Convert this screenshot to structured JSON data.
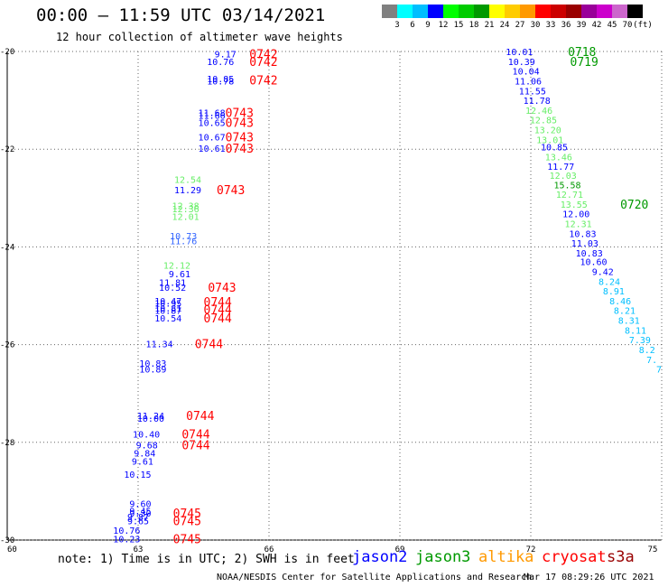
{
  "header": {
    "title": "00:00 — 11:59 UTC 03/14/2021",
    "subtitle": "12 hour collection of altimeter wave heights"
  },
  "legend": {
    "colors": [
      "#808080",
      "#00ffff",
      "#00bfff",
      "#0000ff",
      "#00ff00",
      "#00cc00",
      "#009900",
      "#ffff00",
      "#ffcc00",
      "#ff9900",
      "#ff0000",
      "#cc0000",
      "#990000",
      "#990099",
      "#cc00cc",
      "#cc66cc",
      "#000000"
    ],
    "labels": [
      "3",
      "6",
      "9",
      "12",
      "15",
      "18",
      "21",
      "24",
      "27",
      "30",
      "33",
      "36",
      "39",
      "42",
      "45",
      "70",
      "(ft)"
    ]
  },
  "axes": {
    "lat_labels": [
      "-20",
      "-22",
      "-24",
      "-26",
      "-28",
      "-30"
    ],
    "lon_labels": [
      "60",
      "63",
      "66",
      "69",
      "72",
      "75"
    ]
  },
  "map": {
    "swh_points": [
      {
        "text": "9.17",
        "lon": 65.25,
        "lat": -20.05,
        "color": "#0000ff"
      },
      {
        "text": "10.76",
        "lon": 65.2,
        "lat": -20.2,
        "color": "#0000ff"
      },
      {
        "text": "10.85",
        "lon": 65.2,
        "lat": -20.55,
        "color": "#0000ff"
      },
      {
        "text": "10.78",
        "lon": 65.2,
        "lat": -20.6,
        "color": "#0000ff"
      },
      {
        "text": "11.68",
        "lon": 65.0,
        "lat": -21.25,
        "color": "#0000ff"
      },
      {
        "text": "11.66",
        "lon": 65.0,
        "lat": -21.3,
        "color": "#0000ff"
      },
      {
        "text": "10.65",
        "lon": 65.0,
        "lat": -21.45,
        "color": "#0000ff"
      },
      {
        "text": "10.67",
        "lon": 65.0,
        "lat": -21.75,
        "color": "#0000ff"
      },
      {
        "text": "10.61",
        "lon": 65.0,
        "lat": -21.98,
        "color": "#0000ff"
      },
      {
        "text": "12.54",
        "lon": 64.45,
        "lat": -22.62,
        "color": "#66ee66"
      },
      {
        "text": "11.29",
        "lon": 64.45,
        "lat": -22.83,
        "color": "#0000ff"
      },
      {
        "text": "12.38",
        "lon": 64.4,
        "lat": -23.15,
        "color": "#66ee66"
      },
      {
        "text": "12.36",
        "lon": 64.4,
        "lat": -23.22,
        "color": "#66ee66"
      },
      {
        "text": "12.01",
        "lon": 64.4,
        "lat": -23.37,
        "color": "#66ee66"
      },
      {
        "text": "10.73",
        "lon": 64.35,
        "lat": -23.77,
        "color": "#3366ff"
      },
      {
        "text": "11.76",
        "lon": 64.35,
        "lat": -23.87,
        "color": "#3366ff"
      },
      {
        "text": "12.12",
        "lon": 64.2,
        "lat": -24.37,
        "color": "#66ee66"
      },
      {
        "text": "9.61",
        "lon": 64.2,
        "lat": -24.55,
        "color": "#0000ff"
      },
      {
        "text": "11.81",
        "lon": 64.1,
        "lat": -24.72,
        "color": "#0000ff"
      },
      {
        "text": "10.52",
        "lon": 64.1,
        "lat": -24.82,
        "color": "#0000ff"
      },
      {
        "text": "10.47",
        "lon": 64.0,
        "lat": -25.1,
        "color": "#0000ff"
      },
      {
        "text": "10.95",
        "lon": 64.0,
        "lat": -25.15,
        "color": "#0000ff"
      },
      {
        "text": "10.81",
        "lon": 64.0,
        "lat": -25.25,
        "color": "#0000ff"
      },
      {
        "text": "10.87",
        "lon": 64.0,
        "lat": -25.3,
        "color": "#0000ff"
      },
      {
        "text": "10.54",
        "lon": 64.0,
        "lat": -25.45,
        "color": "#0000ff"
      },
      {
        "text": "11.34",
        "lon": 63.8,
        "lat": -25.98,
        "color": "#0000ff"
      },
      {
        "text": "10.83",
        "lon": 63.65,
        "lat": -26.38,
        "color": "#0000ff"
      },
      {
        "text": "10.89",
        "lon": 63.65,
        "lat": -26.5,
        "color": "#0000ff"
      },
      {
        "text": "11.24",
        "lon": 63.6,
        "lat": -27.45,
        "color": "#0000ff"
      },
      {
        "text": "10.00",
        "lon": 63.6,
        "lat": -27.5,
        "color": "#0000ff"
      },
      {
        "text": "10.40",
        "lon": 63.5,
        "lat": -27.83,
        "color": "#0000ff"
      },
      {
        "text": "9.68",
        "lon": 63.45,
        "lat": -28.05,
        "color": "#0000ff"
      },
      {
        "text": "9.84",
        "lon": 63.4,
        "lat": -28.22,
        "color": "#0000ff"
      },
      {
        "text": "9.61",
        "lon": 63.35,
        "lat": -28.38,
        "color": "#0000ff"
      },
      {
        "text": "10.15",
        "lon": 63.3,
        "lat": -28.65,
        "color": "#0000ff"
      },
      {
        "text": "9.60",
        "lon": 63.3,
        "lat": -29.25,
        "color": "#0000ff"
      },
      {
        "text": "9.45",
        "lon": 63.3,
        "lat": -29.4,
        "color": "#0000ff"
      },
      {
        "text": "9.30",
        "lon": 63.3,
        "lat": -29.45,
        "color": "#0000ff"
      },
      {
        "text": "9.87",
        "lon": 63.25,
        "lat": -29.52,
        "color": "#0000ff"
      },
      {
        "text": "9.65",
        "lon": 63.25,
        "lat": -29.6,
        "color": "#0000ff"
      },
      {
        "text": "10.76",
        "lon": 63.05,
        "lat": -29.8,
        "color": "#0000ff"
      },
      {
        "text": "10.23",
        "lon": 63.05,
        "lat": -29.97,
        "color": "#0000ff"
      },
      {
        "text": "10.01",
        "lon": 72.05,
        "lat": -20.0,
        "color": "#0000ff"
      },
      {
        "text": "10.39",
        "lon": 72.1,
        "lat": -20.2,
        "color": "#0000ff"
      },
      {
        "text": "10.04",
        "lon": 72.2,
        "lat": -20.4,
        "color": "#0000ff"
      },
      {
        "text": "11.06",
        "lon": 72.25,
        "lat": -20.6,
        "color": "#0000ff"
      },
      {
        "text": "11.55",
        "lon": 72.35,
        "lat": -20.8,
        "color": "#0000ff"
      },
      {
        "text": "11.78",
        "lon": 72.45,
        "lat": -21.0,
        "color": "#0000ff"
      },
      {
        "text": "12.46",
        "lon": 72.5,
        "lat": -21.2,
        "color": "#66ee66"
      },
      {
        "text": "12.85",
        "lon": 72.6,
        "lat": -21.4,
        "color": "#66ee66"
      },
      {
        "text": "13.20",
        "lon": 72.7,
        "lat": -21.6,
        "color": "#66ee66"
      },
      {
        "text": "13.01",
        "lon": 72.75,
        "lat": -21.8,
        "color": "#66ee66"
      },
      {
        "text": "10.85",
        "lon": 72.85,
        "lat": -21.95,
        "color": "#0000ff"
      },
      {
        "text": "13.46",
        "lon": 72.95,
        "lat": -22.15,
        "color": "#66ee66"
      },
      {
        "text": "11.77",
        "lon": 73.0,
        "lat": -22.35,
        "color": "#0000ff"
      },
      {
        "text": "12.03",
        "lon": 73.05,
        "lat": -22.53,
        "color": "#66ee66"
      },
      {
        "text": "15.58",
        "lon": 73.15,
        "lat": -22.73,
        "color": "#009900"
      },
      {
        "text": "12.71",
        "lon": 73.2,
        "lat": -22.92,
        "color": "#66ee66"
      },
      {
        "text": "13.55",
        "lon": 73.3,
        "lat": -23.12,
        "color": "#66ee66"
      },
      {
        "text": "12.00",
        "lon": 73.35,
        "lat": -23.32,
        "color": "#0000ff"
      },
      {
        "text": "12.31",
        "lon": 73.4,
        "lat": -23.52,
        "color": "#66ee66"
      },
      {
        "text": "10.83",
        "lon": 73.5,
        "lat": -23.72,
        "color": "#0000ff"
      },
      {
        "text": "11.03",
        "lon": 73.55,
        "lat": -23.92,
        "color": "#0000ff"
      },
      {
        "text": "10.83",
        "lon": 73.65,
        "lat": -24.12,
        "color": "#0000ff"
      },
      {
        "text": "10.60",
        "lon": 73.75,
        "lat": -24.3,
        "color": "#0000ff"
      },
      {
        "text": "9.42",
        "lon": 73.9,
        "lat": -24.5,
        "color": "#0000ff"
      },
      {
        "text": "8.24",
        "lon": 74.05,
        "lat": -24.7,
        "color": "#00bfff"
      },
      {
        "text": "8.91",
        "lon": 74.15,
        "lat": -24.9,
        "color": "#00bfff"
      },
      {
        "text": "8.46",
        "lon": 74.3,
        "lat": -25.1,
        "color": "#00bfff"
      },
      {
        "text": "8.21",
        "lon": 74.4,
        "lat": -25.3,
        "color": "#00bfff"
      },
      {
        "text": "8.31",
        "lon": 74.5,
        "lat": -25.5,
        "color": "#00bfff"
      },
      {
        "text": "8.11",
        "lon": 74.65,
        "lat": -25.7,
        "color": "#00bfff"
      },
      {
        "text": "7.39",
        "lon": 74.75,
        "lat": -25.9,
        "color": "#00bfff"
      },
      {
        "text": "8.2",
        "lon": 74.85,
        "lat": -26.1,
        "color": "#00bfff"
      },
      {
        "text": "7.",
        "lon": 74.9,
        "lat": -26.3,
        "color": "#00bfff"
      },
      {
        "text": "7",
        "lon": 75.0,
        "lat": -26.5,
        "color": "#00bfff"
      }
    ],
    "time_labels": [
      {
        "text": "0742",
        "lon": 65.55,
        "lat": -20.05,
        "color": "#ff0000"
      },
      {
        "text": "0742",
        "lon": 65.55,
        "lat": -20.2,
        "color": "#ff0000"
      },
      {
        "text": "0742",
        "lon": 65.55,
        "lat": -20.58,
        "color": "#ff0000"
      },
      {
        "text": "0743",
        "lon": 65.0,
        "lat": -21.25,
        "color": "#ff0000"
      },
      {
        "text": "0743",
        "lon": 65.0,
        "lat": -21.45,
        "color": "#ff0000"
      },
      {
        "text": "0743",
        "lon": 65.0,
        "lat": -21.75,
        "color": "#ff0000"
      },
      {
        "text": "0743",
        "lon": 65.0,
        "lat": -21.98,
        "color": "#ff0000"
      },
      {
        "text": "0743",
        "lon": 64.8,
        "lat": -22.83,
        "color": "#ff0000"
      },
      {
        "text": "0743",
        "lon": 64.6,
        "lat": -24.82,
        "color": "#ff0000"
      },
      {
        "text": "0744",
        "lon": 64.5,
        "lat": -25.12,
        "color": "#ff0000"
      },
      {
        "text": "0744",
        "lon": 64.5,
        "lat": -25.28,
        "color": "#ff0000"
      },
      {
        "text": "0744",
        "lon": 64.5,
        "lat": -25.45,
        "color": "#ff0000"
      },
      {
        "text": "0744",
        "lon": 64.3,
        "lat": -25.98,
        "color": "#ff0000"
      },
      {
        "text": "0744",
        "lon": 64.1,
        "lat": -27.45,
        "color": "#ff0000"
      },
      {
        "text": "0744",
        "lon": 64.0,
        "lat": -27.83,
        "color": "#ff0000"
      },
      {
        "text": "0744",
        "lon": 64.0,
        "lat": -28.05,
        "color": "#ff0000"
      },
      {
        "text": "0745",
        "lon": 63.8,
        "lat": -29.45,
        "color": "#ff0000"
      },
      {
        "text": "0745",
        "lon": 63.8,
        "lat": -29.6,
        "color": "#ff0000"
      },
      {
        "text": "0745",
        "lon": 63.8,
        "lat": -29.97,
        "color": "#ff0000"
      },
      {
        "text": "0718",
        "lon": 72.85,
        "lat": -20.0,
        "color": "#009900"
      },
      {
        "text": "0719",
        "lon": 72.9,
        "lat": -20.2,
        "color": "#009900"
      },
      {
        "text": "0720",
        "lon": 74.05,
        "lat": -23.12,
        "color": "#009900"
      }
    ]
  },
  "footer": {
    "note": "note: 1) Time is in UTC; 2) SWH is in feet",
    "satellites": [
      {
        "name": "jason2",
        "color": "#0000ff"
      },
      {
        "name": "jason3",
        "color": "#009900"
      },
      {
        "name": "altika",
        "color": "#ff9900"
      },
      {
        "name": "cryosat",
        "color": "#ff0000"
      },
      {
        "name": "s3a",
        "color": "#990000"
      }
    ],
    "credit": "NOAA/NESDIS Center for Satellite Applications and Research",
    "timestamp": "Mar 17 08:29:26 UTC 2021"
  }
}
